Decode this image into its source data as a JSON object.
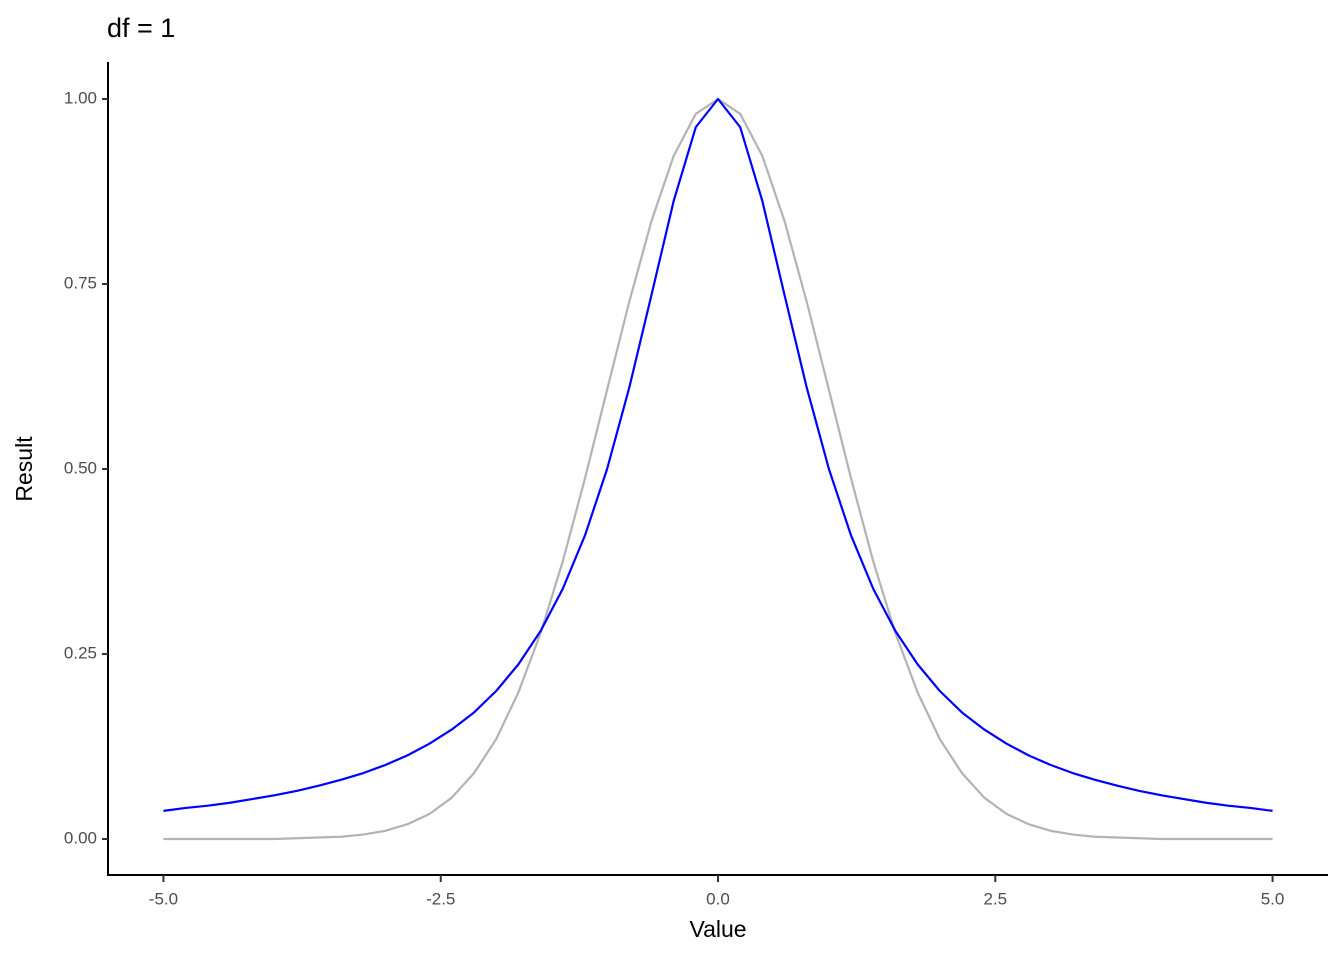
{
  "chart_data": {
    "type": "line",
    "title": "df = 1",
    "x_label": "Value",
    "y_label": "Result",
    "x": [
      -5,
      -4.8,
      -4.6,
      -4.4,
      -4.2,
      -4,
      -3.8,
      -3.6,
      -3.4,
      -3.2,
      -3,
      -2.8,
      -2.6,
      -2.4,
      -2.2,
      -2,
      -1.8,
      -1.6,
      -1.4,
      -1.2,
      -1,
      -0.8,
      -0.6,
      -0.4,
      -0.2,
      0,
      0.2,
      0.4,
      0.6,
      0.8,
      1,
      1.2,
      1.4,
      1.6,
      1.8,
      2,
      2.2,
      2.4,
      2.6,
      2.8,
      3,
      3.2,
      3.4,
      3.6,
      3.8,
      4,
      4.2,
      4.4,
      4.6,
      4.8,
      5
    ],
    "series": [
      {
        "color": "#b3b3b3",
        "values": [
          0,
          0,
          0,
          0,
          0,
          0,
          0.001,
          0.002,
          0.003,
          0.006,
          0.011,
          0.02,
          0.034,
          0.056,
          0.089,
          0.135,
          0.198,
          0.278,
          0.375,
          0.487,
          0.607,
          0.726,
          0.835,
          0.923,
          0.98,
          1,
          0.98,
          0.923,
          0.835,
          0.726,
          0.607,
          0.487,
          0.375,
          0.278,
          0.198,
          0.135,
          0.089,
          0.056,
          0.034,
          0.02,
          0.011,
          0.006,
          0.003,
          0.002,
          0.001,
          0,
          0,
          0,
          0,
          0,
          0
        ]
      },
      {
        "color": "#0000ff",
        "values": [
          0.038,
          0.042,
          0.045,
          0.049,
          0.054,
          0.059,
          0.065,
          0.072,
          0.08,
          0.089,
          0.1,
          0.113,
          0.129,
          0.148,
          0.171,
          0.2,
          0.236,
          0.281,
          0.338,
          0.41,
          0.5,
          0.61,
          0.735,
          0.862,
          0.962,
          1,
          0.962,
          0.862,
          0.735,
          0.61,
          0.5,
          0.41,
          0.338,
          0.281,
          0.236,
          0.2,
          0.171,
          0.148,
          0.129,
          0.113,
          0.1,
          0.089,
          0.08,
          0.072,
          0.065,
          0.059,
          0.054,
          0.049,
          0.045,
          0.042,
          0.038
        ]
      }
    ],
    "xlim": [
      -5.5,
      5.5
    ],
    "xticks": [
      {
        "value": -5,
        "label": "-5.0"
      },
      {
        "value": -2.5,
        "label": "-2.5"
      },
      {
        "value": 0,
        "label": "0.0"
      },
      {
        "value": 2.5,
        "label": "2.5"
      },
      {
        "value": 5,
        "label": "5.0"
      }
    ],
    "ylim": [
      -0.05,
      1.05
    ],
    "yticks": [
      {
        "value": 0,
        "label": "0.00"
      },
      {
        "value": 0.25,
        "label": "0.25"
      },
      {
        "value": 0.5,
        "label": "0.50"
      },
      {
        "value": 0.75,
        "label": "0.75"
      },
      {
        "value": 1,
        "label": "1.00"
      }
    ],
    "grid": false
  }
}
